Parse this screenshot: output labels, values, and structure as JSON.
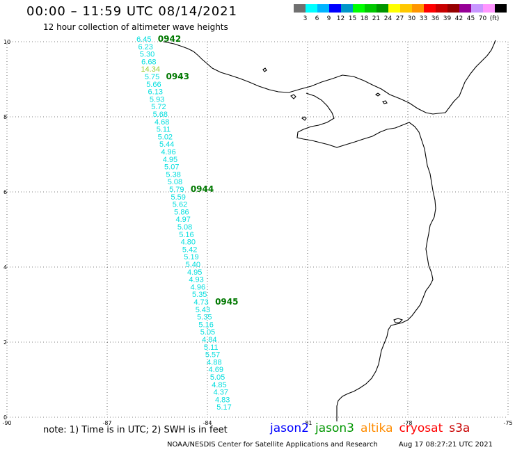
{
  "header": {
    "title": "00:00 – 11:59 UTC 08/14/2021",
    "subtitle": "12 hour collection of altimeter wave heights"
  },
  "legend": {
    "colors": [
      "#707070",
      "#00ffff",
      "#00b4ff",
      "#0000ff",
      "#0096c8",
      "#00ff00",
      "#00c800",
      "#009600",
      "#ffff00",
      "#ffc800",
      "#ff9600",
      "#ff0000",
      "#c80000",
      "#960000",
      "#960096",
      "#c896ff",
      "#ff96ff",
      "#000000"
    ],
    "labels": [
      "3",
      "6",
      "9",
      "12",
      "15",
      "18",
      "21",
      "24",
      "27",
      "30",
      "33",
      "36",
      "39",
      "42",
      "45",
      "70",
      "(ft)"
    ],
    "unit": "(ft)"
  },
  "footer": {
    "note": "note: 1) Time is in UTC; 2) SWH is in feet",
    "credit": "NOAA/NESDIS Center for Satellite Applications and Research",
    "timestamp": "Aug 17 08:27:21 UTC 2021",
    "satellites": [
      {
        "name": "jason2",
        "color": "#0000ff"
      },
      {
        "name": "jason3",
        "color": "#009600"
      },
      {
        "name": "altika",
        "color": "#ff8c00"
      },
      {
        "name": "cryosat",
        "color": "#ff0000"
      },
      {
        "name": "s3a",
        "color": "#c80000"
      }
    ]
  },
  "chart_data": {
    "type": "scatter",
    "title": "00:00 – 11:59 UTC 08/14/2021",
    "subtitle": "12 hour collection of altimeter wave heights",
    "xlabel": "",
    "ylabel": "",
    "xlim": [
      -90,
      -75
    ],
    "ylim": [
      0,
      10
    ],
    "xticks": [
      -90,
      -87,
      -84,
      -81,
      -78,
      -75
    ],
    "yticks": [
      0,
      2,
      4,
      6,
      8,
      10
    ],
    "grid": true,
    "unit": "feet",
    "track": {
      "satellite": "jason3",
      "start": [
        -85.9,
        10.0
      ],
      "end": [
        -83.5,
        0.2
      ],
      "swh_ft": [
        6.45,
        6.23,
        5.3,
        6.68,
        14.34,
        5.75,
        5.66,
        6.13,
        5.93,
        5.72,
        5.68,
        4.68,
        5.11,
        5.02,
        5.44,
        4.96,
        4.95,
        5.07,
        5.38,
        5.08,
        5.79,
        5.59,
        5.62,
        5.86,
        4.97,
        5.08,
        5.16,
        4.8,
        5.42,
        5.19,
        5.4,
        4.95,
        4.93,
        4.96,
        5.35,
        4.73,
        5.43,
        5.35,
        5.16,
        5.05,
        4.84,
        5.11,
        5.57,
        4.88,
        4.69,
        5.05,
        4.85,
        4.37,
        4.83,
        5.17
      ],
      "highlight_color": "#9acd32",
      "base_color": "#00dede"
    },
    "time_labels": [
      {
        "label": "0942",
        "index": 0
      },
      {
        "label": "0943",
        "index": 5
      },
      {
        "label": "0944",
        "index": 20
      },
      {
        "label": "0945",
        "index": 35
      }
    ],
    "time_label_color": "#007800"
  }
}
